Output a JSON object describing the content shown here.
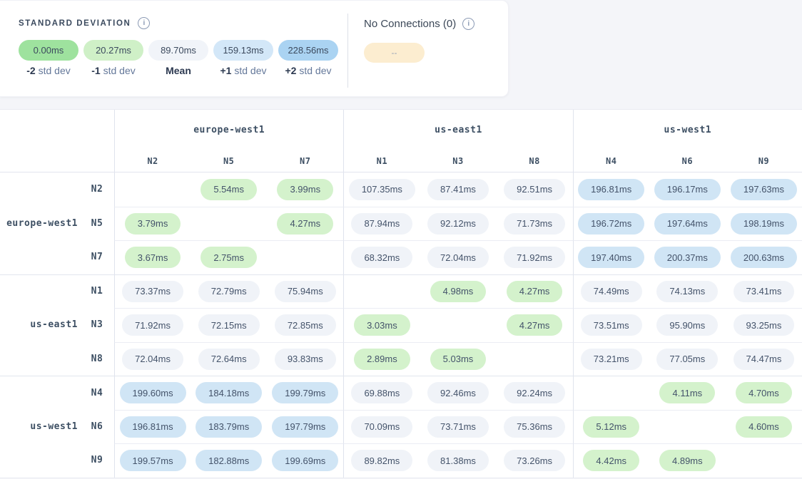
{
  "legend": {
    "title": "STANDARD DEVIATION",
    "info_glyph": "i",
    "buckets": [
      {
        "value": "0.00ms",
        "label_bold": "-2",
        "label_rest": " std dev",
        "color": "#9ee29e"
      },
      {
        "value": "20.27ms",
        "label_bold": "-1",
        "label_rest": " std dev",
        "color": "#cff0c7"
      },
      {
        "value": "89.70ms",
        "label_bold": "Mean",
        "label_rest": "",
        "color": "#f1f4f9"
      },
      {
        "value": "159.13ms",
        "label_bold": "+1",
        "label_rest": " std dev",
        "color": "#d3e7f8"
      },
      {
        "value": "228.56ms",
        "label_bold": "+2",
        "label_rest": " std dev",
        "color": "#aad3f2"
      }
    ],
    "thresholds": {
      "green_max": 20.27,
      "blue_min": 159.13
    }
  },
  "no_connections": {
    "title": "No Connections (0)",
    "info_glyph": "i",
    "chip_text": "--",
    "chip_color": "#fcedd0"
  },
  "matrix": {
    "cell_colors": {
      "low": "#d4f2cc",
      "mid": "#f0f3f8",
      "high": "#d0e5f5"
    },
    "column_groups": [
      {
        "region": "europe-west1",
        "nodes": [
          "N2",
          "N5",
          "N7"
        ]
      },
      {
        "region": "us-east1",
        "nodes": [
          "N1",
          "N3",
          "N8"
        ]
      },
      {
        "region": "us-west1",
        "nodes": [
          "N4",
          "N6",
          "N9"
        ]
      }
    ],
    "row_groups": [
      {
        "region": "europe-west1",
        "rows": [
          {
            "node": "N2",
            "values": [
              null,
              "5.54ms",
              "3.99ms",
              "107.35ms",
              "87.41ms",
              "92.51ms",
              "196.81ms",
              "196.17ms",
              "197.63ms"
            ]
          },
          {
            "node": "N5",
            "values": [
              "3.79ms",
              null,
              "4.27ms",
              "87.94ms",
              "92.12ms",
              "71.73ms",
              "196.72ms",
              "197.64ms",
              "198.19ms"
            ]
          },
          {
            "node": "N7",
            "values": [
              "3.67ms",
              "2.75ms",
              null,
              "68.32ms",
              "72.04ms",
              "71.92ms",
              "197.40ms",
              "200.37ms",
              "200.63ms"
            ]
          }
        ]
      },
      {
        "region": "us-east1",
        "rows": [
          {
            "node": "N1",
            "values": [
              "73.37ms",
              "72.79ms",
              "75.94ms",
              null,
              "4.98ms",
              "4.27ms",
              "74.49ms",
              "74.13ms",
              "73.41ms"
            ]
          },
          {
            "node": "N3",
            "values": [
              "71.92ms",
              "72.15ms",
              "72.85ms",
              "3.03ms",
              null,
              "4.27ms",
              "73.51ms",
              "95.90ms",
              "93.25ms"
            ]
          },
          {
            "node": "N8",
            "values": [
              "72.04ms",
              "72.64ms",
              "93.83ms",
              "2.89ms",
              "5.03ms",
              null,
              "73.21ms",
              "77.05ms",
              "74.47ms"
            ]
          }
        ]
      },
      {
        "region": "us-west1",
        "rows": [
          {
            "node": "N4",
            "values": [
              "199.60ms",
              "184.18ms",
              "199.79ms",
              "69.88ms",
              "92.46ms",
              "92.24ms",
              null,
              "4.11ms",
              "4.70ms"
            ]
          },
          {
            "node": "N6",
            "values": [
              "196.81ms",
              "183.79ms",
              "197.79ms",
              "70.09ms",
              "73.71ms",
              "75.36ms",
              "5.12ms",
              null,
              "4.60ms"
            ]
          },
          {
            "node": "N9",
            "values": [
              "199.57ms",
              "182.88ms",
              "199.69ms",
              "89.82ms",
              "81.38ms",
              "73.26ms",
              "4.42ms",
              "4.89ms",
              null
            ]
          }
        ]
      }
    ]
  }
}
